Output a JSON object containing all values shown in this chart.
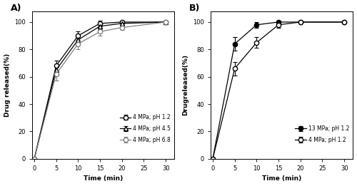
{
  "A": {
    "label": "A)",
    "series": [
      {
        "label": "4 MPa; pH 1.2",
        "x": [
          0,
          5,
          10,
          15,
          20,
          30
        ],
        "y": [
          0,
          68,
          90,
          99,
          100,
          100
        ],
        "yerr": [
          0,
          4,
          3,
          2,
          1,
          0.5
        ],
        "marker": "o",
        "fillstyle": "none",
        "linestyle": "-",
        "color": "black"
      },
      {
        "label": "4 MPa; pH 4.5",
        "x": [
          0,
          5,
          10,
          15,
          20,
          30
        ],
        "y": [
          0,
          65,
          87,
          97,
          99,
          100
        ],
        "yerr": [
          0,
          3,
          3,
          2,
          1,
          0.5
        ],
        "marker": "^",
        "fillstyle": "none",
        "linestyle": "-",
        "color": "black"
      },
      {
        "label": "4 MPa; pH 6.8",
        "x": [
          0,
          5,
          10,
          15,
          20,
          30
        ],
        "y": [
          0,
          62,
          84,
          93,
          96,
          100
        ],
        "yerr": [
          0,
          5,
          4,
          3,
          2,
          0.5
        ],
        "marker": "o",
        "fillstyle": "none",
        "linestyle": "-",
        "color": "gray"
      }
    ],
    "xlabel": "Time (min)",
    "ylabel": "Drug released(%)",
    "xlim": [
      -0.5,
      32
    ],
    "ylim": [
      0,
      108
    ],
    "xticks": [
      0,
      5,
      10,
      15,
      20,
      25,
      30
    ],
    "yticks": [
      0,
      20,
      40,
      60,
      80,
      100
    ]
  },
  "B": {
    "label": "B)",
    "series": [
      {
        "label": "13 MPa; pH 1.2",
        "x": [
          0,
          5,
          10,
          15,
          20,
          30
        ],
        "y": [
          0,
          84,
          98,
          100,
          100,
          100
        ],
        "yerr": [
          0,
          5,
          2,
          1,
          0.5,
          0.5
        ],
        "marker": "o",
        "fillstyle": "full",
        "linestyle": "-",
        "color": "black"
      },
      {
        "label": "4 MPa; pH 1.2",
        "x": [
          0,
          5,
          10,
          15,
          20,
          30
        ],
        "y": [
          0,
          66,
          85,
          98,
          100,
          100
        ],
        "yerr": [
          0,
          5,
          4,
          2,
          1,
          0.5
        ],
        "marker": "o",
        "fillstyle": "none",
        "linestyle": "-",
        "color": "black"
      }
    ],
    "xlabel": "Time (min)",
    "ylabel": "Drugreleased(%)",
    "xlim": [
      -0.5,
      32
    ],
    "ylim": [
      0,
      108
    ],
    "xticks": [
      0,
      5,
      10,
      15,
      20,
      25,
      30
    ],
    "yticks": [
      0,
      20,
      40,
      60,
      80,
      100
    ]
  }
}
